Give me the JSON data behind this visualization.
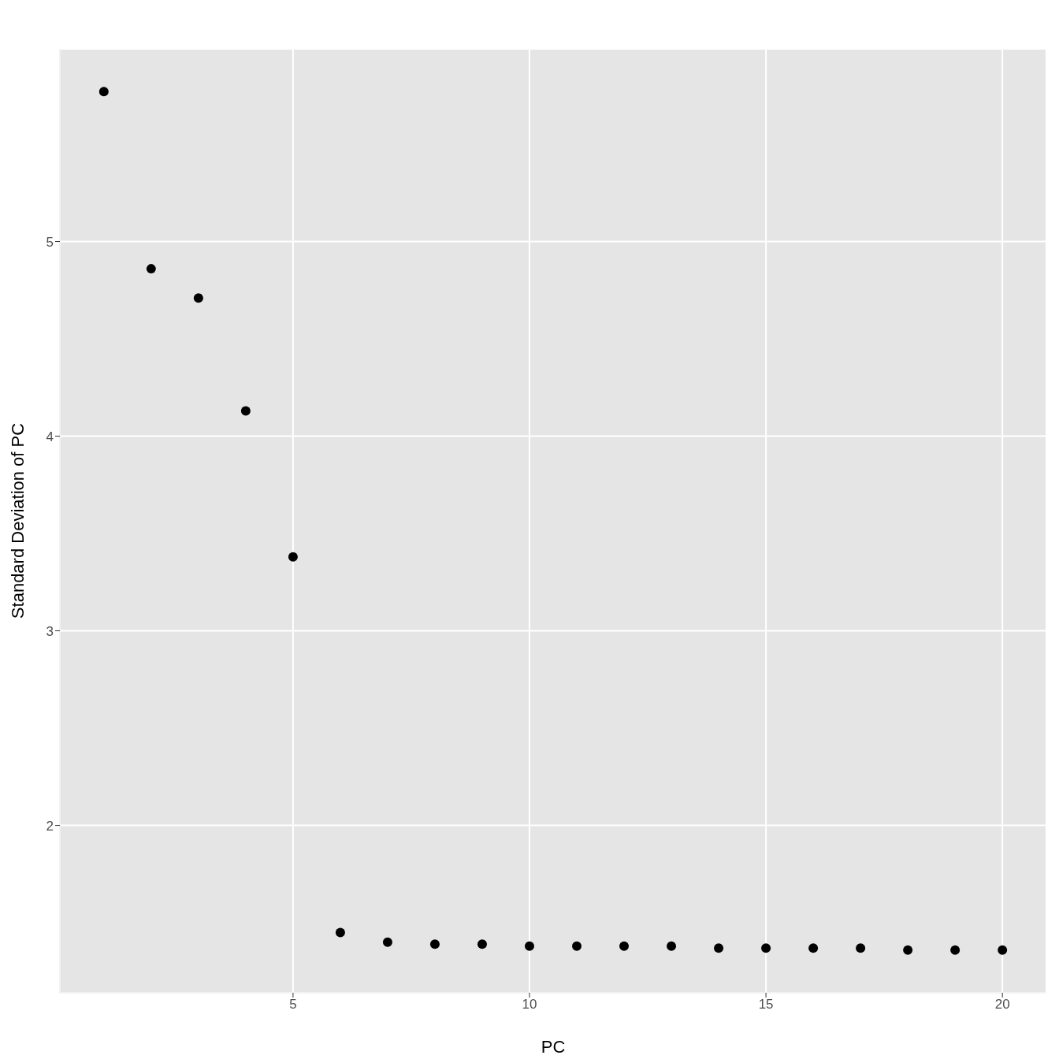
{
  "chart_data": {
    "type": "scatter",
    "xlabel": "PC",
    "ylabel": "Standard Deviation of PC",
    "x": [
      1,
      2,
      3,
      4,
      5,
      6,
      7,
      8,
      9,
      10,
      11,
      12,
      13,
      14,
      15,
      16,
      17,
      18,
      19,
      20
    ],
    "series": [
      {
        "color": "#000000",
        "values": [
          5.77,
          4.86,
          4.71,
          4.13,
          3.38,
          1.45,
          1.4,
          1.39,
          1.39,
          1.38,
          1.38,
          1.38,
          1.38,
          1.37,
          1.37,
          1.37,
          1.37,
          1.36,
          1.36,
          1.36
        ]
      }
    ],
    "xlim": [
      0.07,
      20.93
    ],
    "xticks": [
      5,
      10,
      15,
      20
    ],
    "ylim": [
      1.14,
      5.99
    ],
    "yticks": [
      2,
      3,
      4,
      5
    ],
    "grid": true,
    "marker": "circle",
    "legend": false
  }
}
